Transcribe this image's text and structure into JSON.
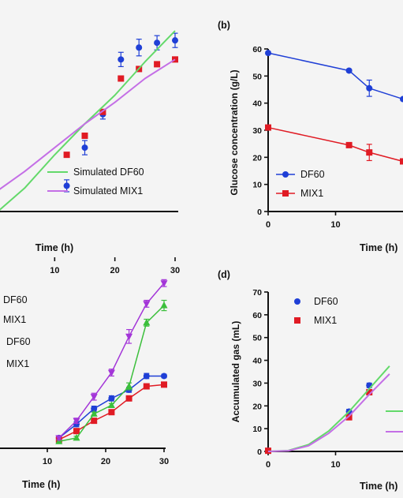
{
  "chart_data": [
    {
      "id": "a",
      "type": "scatter",
      "panel_label": "",
      "xlabel": "Time (h)",
      "ylabel": "",
      "xlim": [
        0,
        30
      ],
      "ylim": [
        0,
        10
      ],
      "x_ticks": [
        10,
        20,
        30
      ],
      "series": [
        {
          "name": "",
          "kind": "markers",
          "marker": "circle",
          "color": "#1f3fd6",
          "points": [
            [
              12,
              3.0
            ],
            [
              15,
              4.6
            ],
            [
              18,
              6.0
            ],
            [
              21,
              8.3
            ],
            [
              24,
              8.8
            ],
            [
              27,
              9.0
            ],
            [
              30,
              9.1
            ]
          ],
          "err": [
            0.25,
            0.3,
            0.2,
            0.3,
            0.35,
            0.3,
            0.3
          ]
        },
        {
          "name": "",
          "kind": "markers",
          "marker": "square",
          "color": "#e01b24",
          "points": [
            [
              12,
              4.3
            ],
            [
              15,
              5.1
            ],
            [
              18,
              6.1
            ],
            [
              21,
              7.5
            ],
            [
              24,
              7.9
            ],
            [
              27,
              8.1
            ],
            [
              30,
              8.3
            ]
          ],
          "err": [
            0.1,
            0.1,
            0.1,
            0.1,
            0.1,
            0.1,
            0.1
          ]
        },
        {
          "name": "Simulated DF60",
          "kind": "line",
          "color": "#63d96a",
          "points": [
            [
              0,
              1.8
            ],
            [
              5,
              2.9
            ],
            [
              10,
              4.3
            ],
            [
              15,
              5.6
            ],
            [
              20,
              6.8
            ],
            [
              25,
              8.2
            ],
            [
              30,
              9.5
            ]
          ]
        },
        {
          "name": "Simulated MIX1",
          "kind": "line",
          "color": "#c46fe6",
          "points": [
            [
              0,
              2.7
            ],
            [
              5,
              3.6
            ],
            [
              10,
              4.6
            ],
            [
              15,
              5.6
            ],
            [
              20,
              6.5
            ],
            [
              25,
              7.5
            ],
            [
              30,
              8.3
            ]
          ]
        }
      ]
    },
    {
      "id": "b",
      "type": "line",
      "panel_label": "(b)",
      "xlabel": "Time (h)",
      "ylabel": "Glucose concentration (g/L)",
      "xlim": [
        0,
        20
      ],
      "ylim": [
        0,
        60
      ],
      "x_ticks": [
        0,
        10
      ],
      "y_ticks": [
        0,
        10,
        20,
        30,
        40,
        50,
        60
      ],
      "series": [
        {
          "name": "DF60",
          "kind": "line+markers",
          "marker": "circle",
          "color": "#1f3fd6",
          "points": [
            [
              0,
              58.5
            ],
            [
              12,
              52.0
            ],
            [
              15,
              45.5
            ],
            [
              20,
              41.5
            ]
          ],
          "err": [
            0.5,
            0.5,
            3.0,
            0
          ]
        },
        {
          "name": "MIX1",
          "kind": "line+markers",
          "marker": "square",
          "color": "#e01b24",
          "points": [
            [
              0,
              31.0
            ],
            [
              12,
              24.5
            ],
            [
              15,
              21.8
            ],
            [
              20,
              18.5
            ]
          ],
          "err": [
            0.5,
            0.5,
            3.0,
            0
          ]
        }
      ]
    },
    {
      "id": "c",
      "type": "line",
      "panel_label": "",
      "xlabel": "Time (h)",
      "ylabel": "",
      "xlim": [
        0,
        30
      ],
      "ylim": [
        0,
        10
      ],
      "x_ticks": [
        10,
        20,
        30
      ],
      "legend": [
        "DF60",
        "MIX1",
        "DF60",
        "MIX1"
      ],
      "series": [
        {
          "name": "DF60",
          "kind": "line+markers",
          "marker": "circle",
          "color": "#1f3fd6",
          "points": [
            [
              12,
              0.6
            ],
            [
              15,
              1.4
            ],
            [
              18,
              2.3
            ],
            [
              21,
              2.9
            ],
            [
              24,
              3.4
            ],
            [
              27,
              4.2
            ],
            [
              30,
              4.2
            ]
          ],
          "err": [
            0.1,
            0.15,
            0.15,
            0.15,
            0.15,
            0.15,
            0.1
          ]
        },
        {
          "name": "MIX1",
          "kind": "line+markers",
          "marker": "square",
          "color": "#e01b24",
          "points": [
            [
              12,
              0.5
            ],
            [
              15,
              1.0
            ],
            [
              18,
              1.6
            ],
            [
              21,
              2.1
            ],
            [
              24,
              2.9
            ],
            [
              27,
              3.6
            ],
            [
              30,
              3.7
            ]
          ],
          "err": [
            0.1,
            0.1,
            0.1,
            0.1,
            0.1,
            0.1,
            0.1
          ]
        },
        {
          "name": "DF60",
          "kind": "line+markers",
          "marker": "triangle-up",
          "color": "#3bbf3b",
          "points": [
            [
              12,
              0.4
            ],
            [
              15,
              0.6
            ],
            [
              18,
              2.0
            ],
            [
              21,
              2.5
            ],
            [
              24,
              3.6
            ],
            [
              27,
              7.3
            ],
            [
              30,
              8.3
            ]
          ],
          "err": [
            0.1,
            0.1,
            0.1,
            0.1,
            0.2,
            0.2,
            0.3
          ]
        },
        {
          "name": "MIX1",
          "kind": "line+markers",
          "marker": "triangle-down",
          "color": "#a335d8",
          "points": [
            [
              12,
              0.6
            ],
            [
              15,
              1.6
            ],
            [
              18,
              3.0
            ],
            [
              21,
              4.4
            ],
            [
              24,
              6.5
            ],
            [
              27,
              8.4
            ],
            [
              30,
              9.6
            ]
          ],
          "err": [
            0.1,
            0.15,
            0.2,
            0.2,
            0.4,
            0.2,
            0.2
          ]
        }
      ]
    },
    {
      "id": "d",
      "type": "scatter",
      "panel_label": "(d)",
      "xlabel": "Time (h)",
      "ylabel": "Accumulated gas (mL)",
      "xlim": [
        0,
        20
      ],
      "ylim": [
        0,
        70
      ],
      "x_ticks": [
        0,
        10
      ],
      "y_ticks": [
        0,
        10,
        20,
        30,
        40,
        50,
        60,
        70
      ],
      "series": [
        {
          "name": "DF60",
          "kind": "markers",
          "marker": "circle",
          "color": "#1f3fd6",
          "points": [
            [
              0,
              0.3
            ],
            [
              12,
              17.5
            ],
            [
              15,
              29.0
            ]
          ],
          "err": [
            0,
            1.0,
            1.0
          ]
        },
        {
          "name": "MIX1",
          "kind": "markers",
          "marker": "square",
          "color": "#e01b24",
          "points": [
            [
              0,
              0.3
            ],
            [
              12,
              15.0
            ],
            [
              15,
              26.0
            ]
          ],
          "err": [
            0,
            1.0,
            1.0
          ]
        },
        {
          "name": "",
          "kind": "line",
          "color": "#63d96a",
          "points": [
            [
              0,
              0
            ],
            [
              3,
              0.4
            ],
            [
              6,
              3.0
            ],
            [
              9,
              9.0
            ],
            [
              12,
              17.5
            ],
            [
              15,
              27.5
            ],
            [
              18,
              37.5
            ]
          ]
        },
        {
          "name": "",
          "kind": "line",
          "color": "#c46fe6",
          "points": [
            [
              0,
              0
            ],
            [
              3,
              0.3
            ],
            [
              6,
              2.5
            ],
            [
              9,
              8.0
            ],
            [
              12,
              15.5
            ],
            [
              15,
              25.0
            ],
            [
              18,
              34.0
            ]
          ]
        }
      ]
    }
  ]
}
